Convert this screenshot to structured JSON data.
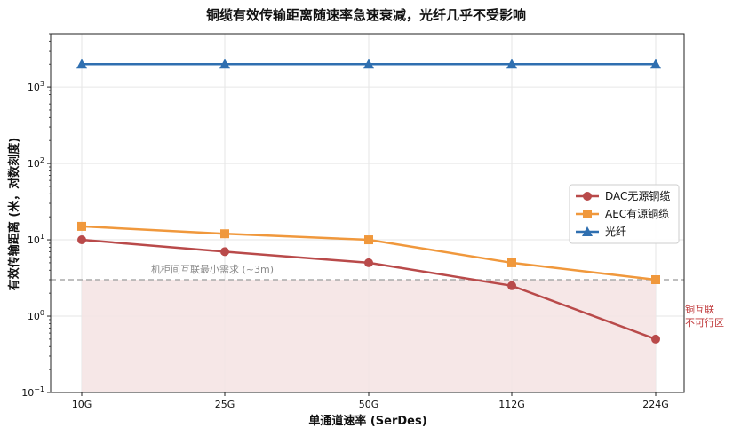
{
  "chart_data": {
    "type": "line",
    "title": "铜缆有效传输距离随速率急速衰减，光纤几乎不受影响",
    "xlabel": "单通道速率 (SerDes)",
    "ylabel": "有效传输距离 (米，对数刻度)",
    "categories": [
      "10G",
      "25G",
      "50G",
      "112G",
      "224G"
    ],
    "yscale": "log",
    "ylim": [
      0.1,
      5000
    ],
    "y_ticks": [
      {
        "value": 0.1,
        "base": "10",
        "exp": "−1"
      },
      {
        "value": 1,
        "base": "10",
        "exp": "0"
      },
      {
        "value": 10,
        "base": "10",
        "exp": "1"
      },
      {
        "value": 100,
        "base": "10",
        "exp": "2"
      },
      {
        "value": 1000,
        "base": "10",
        "exp": "3"
      }
    ],
    "grid": true,
    "legend_position": "center-right",
    "series": [
      {
        "name": "DAC无源铜缆",
        "values": [
          10,
          7,
          5,
          2.5,
          0.5
        ],
        "color": "#b94a4a",
        "marker": "circle"
      },
      {
        "name": "AEC有源铜缆",
        "values": [
          15,
          12,
          10,
          5,
          3
        ],
        "color": "#f0983c",
        "marker": "square"
      },
      {
        "name": "光纤",
        "values": [
          2000,
          2000,
          2000,
          2000,
          2000
        ],
        "color": "#2f6fb0",
        "marker": "triangle"
      }
    ],
    "reference_line": {
      "value": 3,
      "label": "机柜间互联最小需求 (~3m)",
      "color": "#aaaaaa"
    },
    "shaded_region": {
      "below": 3,
      "label_line1": "铜互联",
      "label_line2": "不可行区",
      "fill": "#f5e3e3",
      "label_color": "#c0393b"
    }
  }
}
